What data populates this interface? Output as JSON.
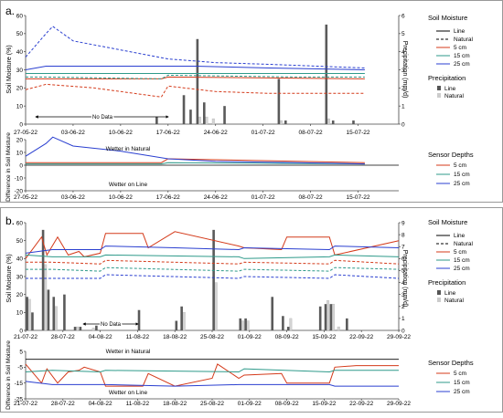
{
  "figure": {
    "panels": [
      {
        "label": "a.",
        "x_ticks": [
          "27-05-22",
          "03-06-22",
          "10-06-22",
          "17-06-22",
          "24-06-22",
          "01-07-22",
          "08-07-22",
          "15-07-22"
        ],
        "left_ylabel": "Soil Moisture (%)",
        "left_yticks": [
          0,
          10,
          20,
          30,
          40,
          50,
          60
        ],
        "right_ylabel": "Precipitation (mm/d)",
        "right_yticks": [
          0,
          1,
          2,
          3,
          4,
          5,
          6
        ],
        "annotation": "No Data",
        "diff_ylabel": "Difference in Soil Moisture",
        "diff_yticks": [
          -20,
          -10,
          0,
          10,
          20
        ],
        "diff_top_text": "Wetter in Natural",
        "diff_bottom_text": "Wetter on Line"
      },
      {
        "label": "b.",
        "x_ticks": [
          "21-07-22",
          "28-07-22",
          "04-08-22",
          "11-08-22",
          "18-08-22",
          "25-08-22",
          "01-09-22",
          "08-09-22",
          "15-09-22",
          "22-09-22",
          "29-09-22"
        ],
        "left_ylabel": "Soil Moisture (%)",
        "left_yticks": [
          0,
          10,
          20,
          30,
          40,
          50,
          60
        ],
        "right_ylabel": "Precipitation (mm/d)",
        "right_yticks": [
          0,
          1,
          2,
          3,
          4,
          5,
          6,
          7,
          8,
          9
        ],
        "annotation": "No Data",
        "diff_ylabel": "Difference in Soil Moisture",
        "diff_yticks": [
          -25,
          -15,
          -5,
          5
        ],
        "diff_top_text": "Wetter in Natural",
        "diff_bottom_text": "Wetter on Line"
      }
    ],
    "legend": {
      "soil_title": "Soil Moisture",
      "line": "Line",
      "natural": "Natural",
      "d5": "5 cm",
      "d15": "15 cm",
      "d25": "25 cm",
      "precip_title": "Precipitation",
      "sensor_title": "Sensor Depths"
    }
  },
  "chart_data": [
    {
      "type": "line",
      "panel": "a",
      "x_range": [
        "27-05-22",
        "21-07-22"
      ],
      "ylim": [
        0,
        60
      ],
      "y2lim": [
        0,
        6
      ],
      "series": [
        {
          "name": "5 cm Line",
          "color": "#d43a1a",
          "dash": "solid",
          "x": [
            0,
            3,
            20,
            21,
            50
          ],
          "y": [
            25,
            25,
            25,
            26,
            25
          ]
        },
        {
          "name": "15 cm Line",
          "color": "#2e9a8a",
          "dash": "solid",
          "x": [
            0,
            50
          ],
          "y": [
            28,
            28
          ]
        },
        {
          "name": "25 cm Line",
          "color": "#2a3fd0",
          "dash": "solid",
          "x": [
            0,
            3,
            20,
            25,
            36,
            50
          ],
          "y": [
            30,
            32,
            32,
            32,
            31,
            30
          ]
        },
        {
          "name": "5 cm Natural",
          "color": "#d43a1a",
          "dash": "dashed",
          "x": [
            0,
            3,
            10,
            14,
            20,
            21,
            28,
            36,
            50
          ],
          "y": [
            19,
            22,
            20,
            18,
            15,
            21,
            18,
            17,
            17
          ]
        },
        {
          "name": "15 cm Natural",
          "color": "#2e9a8a",
          "dash": "dashed",
          "x": [
            0,
            3,
            20,
            21,
            40,
            50
          ],
          "y": [
            26,
            26,
            25,
            27,
            26,
            26
          ]
        },
        {
          "name": "25 cm Natural",
          "color": "#2a3fd0",
          "dash": "dashed",
          "x": [
            0,
            3,
            4,
            7,
            14,
            21,
            28,
            36,
            50
          ],
          "y": [
            37,
            50,
            54,
            46,
            41,
            36,
            34,
            33,
            31
          ]
        }
      ],
      "precip_line": {
        "x": [
          19,
          23,
          24,
          25,
          26,
          29,
          37,
          38,
          44,
          45,
          48
        ],
        "y": [
          0.4,
          1.6,
          0.8,
          4.7,
          1.2,
          1.0,
          2.5,
          0.2,
          5.5,
          0.2,
          0.2
        ]
      },
      "precip_natural": {
        "x": [
          25,
          26,
          27,
          37,
          44
        ],
        "y": [
          0.4,
          0.4,
          0.3,
          0.2,
          0.3
        ]
      },
      "difference": [
        {
          "name": "5 cm",
          "color": "#d43a1a",
          "x": [
            0,
            20,
            21,
            50
          ],
          "y": [
            2,
            2,
            5,
            2
          ]
        },
        {
          "name": "15 cm",
          "color": "#2e9a8a",
          "x": [
            0,
            20,
            21,
            50
          ],
          "y": [
            1,
            1,
            2,
            1
          ]
        },
        {
          "name": "25 cm",
          "color": "#2a3fd0",
          "x": [
            0,
            3,
            4,
            7,
            14,
            21,
            28,
            40,
            50
          ],
          "y": [
            7,
            17,
            22,
            15,
            11,
            5,
            3,
            2,
            1
          ]
        }
      ]
    },
    {
      "type": "line",
      "panel": "b",
      "x_range": [
        "21-07-22",
        "29-09-22"
      ],
      "ylim": [
        0,
        60
      ],
      "y2lim": [
        0,
        9
      ],
      "series": [
        {
          "name": "5 cm Line",
          "color": "#d43a1a",
          "dash": "solid",
          "x": [
            0,
            3,
            4,
            6,
            8,
            10,
            11,
            14,
            15,
            22,
            23,
            28,
            40,
            41,
            48,
            49,
            57,
            58,
            70
          ],
          "y": [
            40,
            52,
            42,
            52,
            42,
            44,
            41,
            43,
            54,
            54,
            46,
            55,
            47,
            46,
            45,
            52,
            52,
            42,
            50
          ]
        },
        {
          "name": "15 cm Line",
          "color": "#2e9a8a",
          "dash": "solid",
          "x": [
            0,
            5,
            14,
            15,
            40,
            41,
            57,
            58,
            70
          ],
          "y": [
            42,
            41,
            41,
            42,
            41,
            40,
            41,
            42,
            41
          ]
        },
        {
          "name": "25 cm Line",
          "color": "#2a3fd0",
          "dash": "solid",
          "x": [
            0,
            5,
            14,
            15,
            28,
            40,
            41,
            57,
            58,
            70
          ],
          "y": [
            43,
            45,
            45,
            47,
            46,
            45,
            46,
            45,
            47,
            46
          ]
        },
        {
          "name": "5 cm Natural",
          "color": "#d43a1a",
          "dash": "dashed",
          "x": [
            0,
            5,
            14,
            15,
            40,
            41,
            57,
            58,
            70
          ],
          "y": [
            38,
            38,
            37,
            39,
            37,
            38,
            37,
            39,
            37
          ]
        },
        {
          "name": "15 cm Natural",
          "color": "#2e9a8a",
          "dash": "dashed",
          "x": [
            0,
            5,
            14,
            15,
            40,
            41,
            57,
            58,
            70
          ],
          "y": [
            34,
            34,
            33,
            35,
            33,
            34,
            33,
            35,
            34
          ]
        },
        {
          "name": "25 cm Natural",
          "color": "#2a3fd0",
          "dash": "dashed",
          "x": [
            0,
            5,
            14,
            15,
            40,
            41,
            57,
            58,
            70
          ],
          "y": [
            29,
            29,
            29,
            31,
            29,
            30,
            29,
            31,
            29
          ]
        }
      ],
      "precip_line": {
        "x": [
          0,
          1,
          3,
          4,
          5,
          7,
          9,
          10,
          13,
          21,
          28,
          29,
          35,
          40,
          41,
          46,
          48,
          49,
          55,
          56,
          57,
          60
        ],
        "y": [
          2.8,
          1.5,
          8.4,
          3.4,
          2.8,
          3.0,
          0.3,
          0.3,
          0.4,
          1.7,
          0.8,
          2.0,
          8.4,
          1.0,
          1.0,
          2.8,
          1.2,
          0.3,
          2.0,
          2.2,
          2.2,
          1.0
        ]
      },
      "precip_natural": {
        "x": [
          0,
          3,
          5,
          9,
          12,
          29,
          35,
          40,
          41,
          49,
          56,
          57,
          58
        ],
        "y": [
          2.6,
          5.5,
          2.0,
          0.3,
          0.2,
          1.5,
          4.0,
          0.8,
          0.8,
          1.0,
          2.5,
          2.2,
          0.3
        ]
      },
      "difference": [
        {
          "name": "5 cm",
          "color": "#d43a1a",
          "x": [
            0,
            3,
            4,
            6,
            8,
            10,
            11,
            14,
            15,
            22,
            23,
            28,
            35,
            36,
            40,
            41,
            48,
            49,
            57,
            58,
            62,
            70
          ],
          "y": [
            -3,
            -15,
            -6,
            -15,
            -8,
            -7,
            -5,
            -8,
            -17,
            -17,
            -9,
            -17,
            -12,
            -3,
            -12,
            -10,
            -9,
            -15,
            -15,
            -5,
            -4,
            -4
          ]
        },
        {
          "name": "15 cm",
          "color": "#2e9a8a",
          "x": [
            0,
            5,
            14,
            15,
            40,
            41,
            57,
            58,
            70
          ],
          "y": [
            -8,
            -7,
            -8,
            -7,
            -8,
            -6,
            -8,
            -7,
            -7
          ]
        },
        {
          "name": "25 cm",
          "color": "#2a3fd0",
          "x": [
            0,
            5,
            14,
            15,
            28,
            40,
            41,
            57,
            58,
            70
          ],
          "y": [
            -14,
            -16,
            -16,
            -16,
            -17,
            -16,
            -16,
            -16,
            -17,
            -17
          ]
        }
      ]
    }
  ]
}
